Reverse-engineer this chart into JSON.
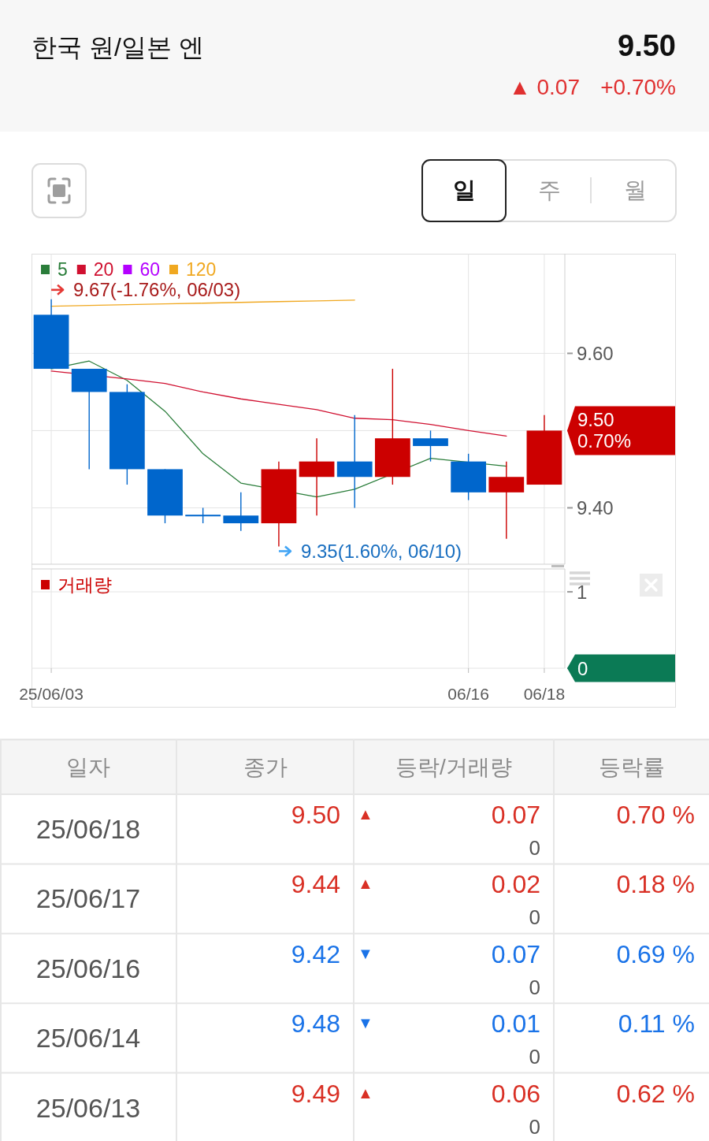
{
  "chart_data": [
    {
      "type": "other",
      "title": "한국 원/일본 엔",
      "annotations": [
        "9.50",
        "▲ 0.07",
        "+0.70%",
        "일",
        "주",
        "월"
      ]
    },
    {
      "type": "candlestick",
      "categories": [
        "25/06/03",
        null,
        null,
        null,
        null,
        null,
        null,
        null,
        null,
        null,
        null,
        "06/16",
        null,
        "06/18"
      ],
      "ohlc": [
        [
          9.65,
          9.67,
          9.58,
          9.58
        ],
        [
          9.58,
          9.58,
          9.45,
          9.55
        ],
        [
          9.55,
          9.56,
          9.43,
          9.45
        ],
        [
          9.45,
          9.45,
          9.38,
          9.39
        ],
        [
          9.39,
          9.4,
          9.38,
          9.39
        ],
        [
          9.39,
          9.42,
          9.37,
          9.38
        ],
        [
          9.38,
          9.46,
          9.35,
          9.45
        ],
        [
          9.44,
          9.49,
          9.39,
          9.46
        ],
        [
          9.46,
          9.52,
          9.4,
          9.44
        ],
        [
          9.44,
          9.58,
          9.43,
          9.49
        ],
        [
          9.49,
          9.5,
          9.46,
          9.48
        ],
        [
          9.46,
          9.47,
          9.41,
          9.42
        ],
        [
          9.42,
          9.46,
          9.36,
          9.44
        ],
        [
          9.43,
          9.52,
          9.43,
          9.5
        ]
      ],
      "colors": [
        "#0066cc",
        "#0066cc",
        "#0066cc",
        "#0066cc",
        "#0066cc",
        "#0066cc",
        "#cc0000",
        "#cc0000",
        "#0066cc",
        "#cc0000",
        "#0066cc",
        "#0066cc",
        "#cc0000",
        "#cc0000"
      ],
      "series": [
        {
          "type": "line",
          "name": "5",
          "color": "#2a7d3a",
          "values": [
            9.58,
            9.59,
            9.565,
            9.525,
            9.47,
            9.432,
            null,
            9.414,
            9.424,
            null,
            9.464,
            null,
            9.454,
            null
          ]
        },
        {
          "type": "line",
          "name": "20",
          "color": "#d01030",
          "values": [
            9.577,
            null,
            9.567,
            9.561,
            9.55,
            9.541,
            9.534,
            9.527,
            9.516,
            9.514,
            9.508,
            9.5,
            9.493,
            null
          ]
        },
        {
          "type": "line",
          "name": "60",
          "color": "#b400ff",
          "values": [
            null,
            null,
            null,
            null,
            null,
            null,
            null,
            null,
            null,
            null,
            null,
            null,
            null,
            null
          ]
        },
        {
          "type": "line",
          "name": "120",
          "color": "#f0a820",
          "values": [
            9.661,
            9.662,
            9.663,
            9.664,
            9.665,
            9.666,
            9.667,
            9.668,
            9.669,
            null,
            null,
            null,
            null,
            null
          ]
        }
      ],
      "ylim": [
        9.327,
        9.729
      ],
      "yticks": [
        {
          "value": 9.6,
          "label": "9.60"
        },
        {
          "value": 9.5,
          "label": null
        },
        {
          "value": 9.4,
          "label": "9.40"
        }
      ],
      "grid": true,
      "legend": "top left",
      "tick_labels": "y",
      "annotations": [
        {
          "text": "9.67(-1.76%, 06/03)",
          "x": "25/06/03",
          "y": 9.67
        },
        "9.35(1.60%, 06/10)"
      ],
      "value_labels": [
        null,
        null,
        null,
        null,
        null,
        null,
        null,
        null,
        null,
        null,
        null,
        null,
        null,
        "9.50\n0.70%"
      ]
    },
    {
      "type": "bar",
      "categories": [
        "25/06/03",
        null,
        null,
        null,
        null,
        null,
        null,
        null,
        null,
        null,
        null,
        "06/16",
        null,
        "06/18"
      ],
      "series": [
        {
          "name": "거래량",
          "color": "#cc0000",
          "values": [
            0,
            0,
            0,
            0,
            0,
            0,
            0,
            0,
            0,
            0,
            0,
            0,
            0,
            0
          ]
        }
      ],
      "ylim": [
        0,
        1.3
      ],
      "yticks": [
        0,
        1
      ],
      "grid": true,
      "legend": "top left"
    },
    {
      "type": "other",
      "categories": [
        "일자",
        "종가",
        "등락/거래량",
        "등락률"
      ],
      "y_categories": [
        "25/06/18",
        "25/06/17",
        "25/06/16",
        "25/06/14",
        "25/06/13"
      ],
      "cell_labels": [
        [
          "9.50",
          "▲",
          "0.07",
          "0",
          "0.70 %"
        ],
        [
          "9.44",
          "▲",
          "0.02",
          "0",
          "0.18 %"
        ],
        [
          "9.42",
          "▼",
          "0.07",
          "0",
          "0.69 %"
        ],
        [
          "9.48",
          "▼",
          "0.01",
          "0",
          "0.11 %"
        ],
        [
          "9.49",
          "▲",
          "0.06",
          "0",
          "0.62 %"
        ]
      ],
      "colors": [
        "#d93025",
        "#d93025",
        "#1a73e8",
        "#1a73e8",
        "#d93025"
      ]
    }
  ]
}
